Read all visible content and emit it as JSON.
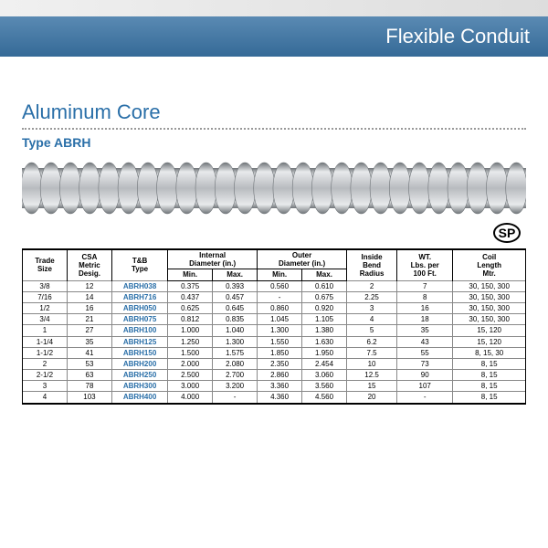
{
  "header": {
    "title": "Flexible Conduit"
  },
  "section": {
    "heading": "Aluminum Core",
    "subheading": "Type ABRH"
  },
  "csa_mark": "SP",
  "conduit": {
    "ridge_count": 26,
    "body_color": "#b8bbbf",
    "highlight": "#e8eaec",
    "shadow": "#6f7478"
  },
  "table": {
    "columns_top": [
      {
        "label": "Trade\nSize",
        "rowspan": 2
      },
      {
        "label": "CSA\nMetric\nDesig.",
        "rowspan": 2
      },
      {
        "label": "T&B\nType",
        "rowspan": 2
      },
      {
        "label": "Internal\nDiameter (in.)",
        "colspan": 2
      },
      {
        "label": "Outer\nDiameter (in.)",
        "colspan": 2
      },
      {
        "label": "Inside\nBend\nRadius",
        "rowspan": 2
      },
      {
        "label": "WT.\nLbs. per\n100 Ft.",
        "rowspan": 2
      },
      {
        "label": "Coil\nLength\nMtr.",
        "rowspan": 2
      }
    ],
    "columns_sub": [
      "Min.",
      "Max.",
      "Min.",
      "Max."
    ],
    "sub_under": [
      3,
      4
    ],
    "rows": [
      {
        "trade": "3/8",
        "csa": "12",
        "type": "ABRH038",
        "imin": "0.375",
        "imax": "0.393",
        "omin": "0.560",
        "omax": "0.610",
        "bend": "2",
        "wt": "7",
        "coil": "30, 150, 300"
      },
      {
        "trade": "7/16",
        "csa": "14",
        "type": "ABRH716",
        "imin": "0.437",
        "imax": "0.457",
        "omin": "-",
        "omax": "0.675",
        "bend": "2.25",
        "wt": "8",
        "coil": "30, 150, 300"
      },
      {
        "trade": "1/2",
        "csa": "16",
        "type": "ABRH050",
        "imin": "0.625",
        "imax": "0.645",
        "omin": "0.860",
        "omax": "0.920",
        "bend": "3",
        "wt": "16",
        "coil": "30, 150, 300"
      },
      {
        "trade": "3/4",
        "csa": "21",
        "type": "ABRH075",
        "imin": "0.812",
        "imax": "0.835",
        "omin": "1.045",
        "omax": "1.105",
        "bend": "4",
        "wt": "18",
        "coil": "30, 150, 300"
      },
      {
        "trade": "1",
        "csa": "27",
        "type": "ABRH100",
        "imin": "1.000",
        "imax": "1.040",
        "omin": "1.300",
        "omax": "1.380",
        "bend": "5",
        "wt": "35",
        "coil": "15, 120"
      },
      {
        "trade": "1-1/4",
        "csa": "35",
        "type": "ABRH125",
        "imin": "1.250",
        "imax": "1.300",
        "omin": "1.550",
        "omax": "1.630",
        "bend": "6.2",
        "wt": "43",
        "coil": "15, 120"
      },
      {
        "trade": "1-1/2",
        "csa": "41",
        "type": "ABRH150",
        "imin": "1.500",
        "imax": "1.575",
        "omin": "1.850",
        "omax": "1.950",
        "bend": "7.5",
        "wt": "55",
        "coil": "8, 15, 30"
      },
      {
        "trade": "2",
        "csa": "53",
        "type": "ABRH200",
        "imin": "2.000",
        "imax": "2.080",
        "omin": "2.350",
        "omax": "2.454",
        "bend": "10",
        "wt": "73",
        "coil": "8, 15"
      },
      {
        "trade": "2-1/2",
        "csa": "63",
        "type": "ABRH250",
        "imin": "2.500",
        "imax": "2.700",
        "omin": "2.860",
        "omax": "3.060",
        "bend": "12.5",
        "wt": "90",
        "coil": "8, 15"
      },
      {
        "trade": "3",
        "csa": "78",
        "type": "ABRH300",
        "imin": "3.000",
        "imax": "3.200",
        "omin": "3.360",
        "omax": "3.560",
        "bend": "15",
        "wt": "107",
        "coil": "8, 15"
      },
      {
        "trade": "4",
        "csa": "103",
        "type": "ABRH400",
        "imin": "4.000",
        "imax": "-",
        "omin": "4.360",
        "omax": "4.560",
        "bend": "20",
        "wt": "-",
        "coil": "8, 15"
      }
    ],
    "col_widths_pct": [
      8,
      8,
      10,
      8,
      8,
      8,
      8,
      9,
      10,
      13
    ]
  }
}
